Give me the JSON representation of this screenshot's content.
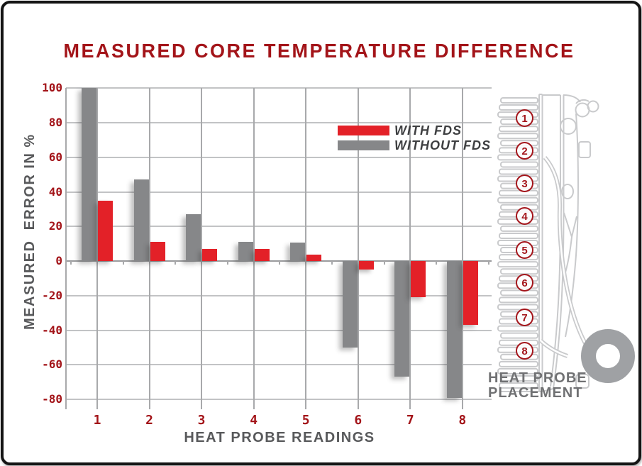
{
  "title": "MEASURED CORE TEMPERATURE DIFFERENCE",
  "colors": {
    "accent_red": "#e32128",
    "dark_red": "#a31419",
    "bar_gray": "#868789",
    "grid_light": "#c2c3c5",
    "grid_dark": "#9a9b9d",
    "text_gray": "#58595b",
    "legend_text": "#3e3f41",
    "outline_gray": "#c9cacc",
    "ring_gray": "#9fa1a4"
  },
  "chart_data": {
    "type": "bar",
    "title": "MEASURED CORE TEMPERATURE DIFFERENCE",
    "categories": [
      "1",
      "2",
      "3",
      "4",
      "5",
      "6",
      "7",
      "8"
    ],
    "series": [
      {
        "name": "WITH FDS",
        "color": "#e32128",
        "values": [
          35,
          11,
          7,
          7,
          3.5,
          -5,
          -21,
          -37
        ]
      },
      {
        "name": "WITHOUT FDS",
        "color": "#868789",
        "values": [
          100,
          47,
          27,
          11,
          10.5,
          -50,
          -67,
          -79
        ]
      }
    ],
    "xlabel": "HEAT PROBE READINGS",
    "ylabel": "MEASURED  ERROR IN %",
    "yticks": [
      100,
      80,
      60,
      40,
      20,
      0,
      -20,
      -40,
      -60,
      -80
    ],
    "ylim": [
      -80,
      100
    ],
    "grid": true,
    "legend_position": "upper right"
  },
  "legend": {
    "items": [
      {
        "label": "WITH FDS",
        "color": "#e32128"
      },
      {
        "label": "WITHOUT FDS",
        "color": "#868789"
      }
    ]
  },
  "diagram": {
    "probes": [
      "1",
      "2",
      "3",
      "4",
      "5",
      "6",
      "7",
      "8"
    ],
    "caption_line1": "HEAT PROBE",
    "caption_line2": "PLACEMENT"
  }
}
